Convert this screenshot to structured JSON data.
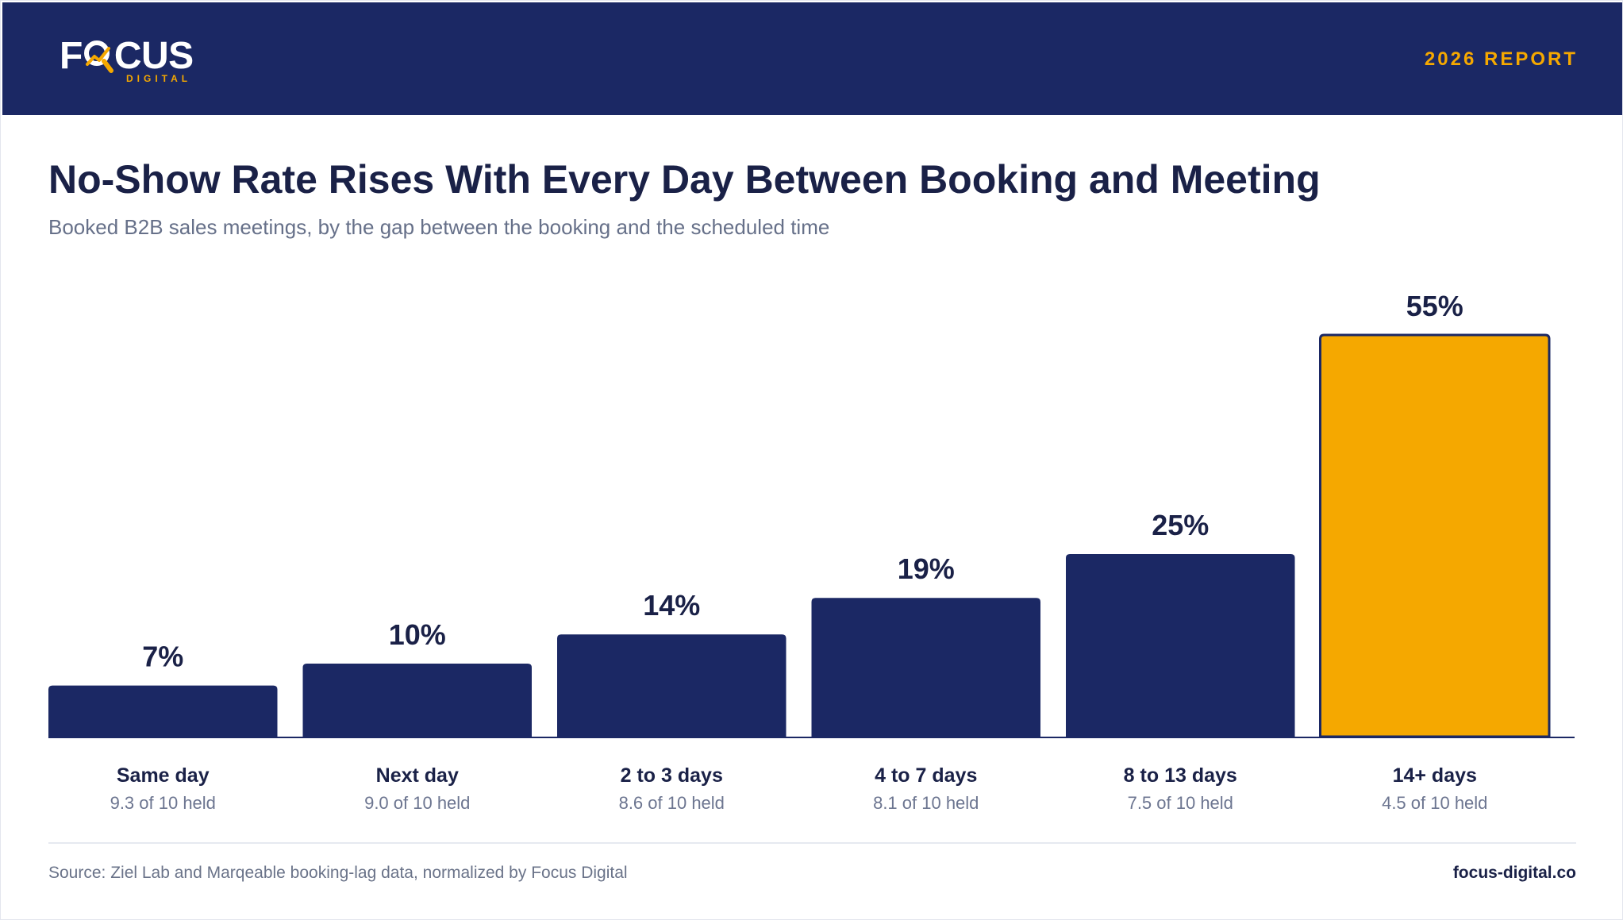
{
  "header": {
    "logo": {
      "main_left": "F",
      "main_right": "CUS",
      "sub": "DIGITAL"
    },
    "report_label": "2026 REPORT"
  },
  "colors": {
    "navy": "#1b2864",
    "accent": "#f5a800",
    "title": "#1a2147",
    "muted": "#667089"
  },
  "chart_data": {
    "type": "bar",
    "title": "No-Show Rate Rises With Every Day Between Booking and Meeting",
    "subtitle": "Booked B2B sales meetings, by the gap between the booking and the scheduled time",
    "categories": [
      "Same day",
      "Next day",
      "2 to 3 days",
      "4 to 7 days",
      "8 to 13 days",
      "14+ days"
    ],
    "values": [
      7,
      10,
      14,
      19,
      25,
      55
    ],
    "value_labels": [
      "7%",
      "10%",
      "14%",
      "19%",
      "25%",
      "55%"
    ],
    "sublabels": [
      "9.3 of 10 held",
      "9.0 of 10 held",
      "8.6 of 10 held",
      "8.1 of 10 held",
      "7.5 of 10 held",
      "4.5 of 10 held"
    ],
    "highlight_index": 5,
    "ylim": [
      0,
      55
    ],
    "xlabel": "",
    "ylabel": "",
    "grid": false,
    "legend": "none"
  },
  "footer": {
    "source": "Source: Ziel Lab and Marqeable booking-lag data, normalized by Focus Digital",
    "site": "focus-digital.co"
  }
}
